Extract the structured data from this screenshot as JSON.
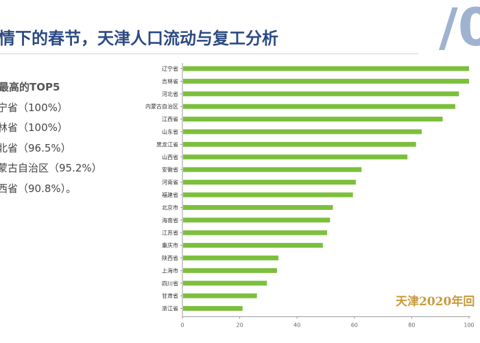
{
  "header": {
    "title": "情下的春节，天津人口流动与复工分析",
    "deco_mark": "/0"
  },
  "side_panel": {
    "heading": "最高的TOP5",
    "items": [
      "宁省（100%）",
      "林省（100%）",
      "北省（96.5%）",
      "蒙古自治区（95.2%）",
      "西省（90.8%）。"
    ]
  },
  "watermark": "天津2020年回",
  "colors": {
    "bar": "#7cbf3c",
    "title": "#2b4a82",
    "watermark": "#c89a3a",
    "deco": "#9fb3d1"
  },
  "chart_data": {
    "type": "bar",
    "orientation": "horizontal",
    "categories": [
      "辽宁省",
      "吉林省",
      "河北省",
      "内蒙古自治区",
      "江西省",
      "山东省",
      "黑龙江省",
      "山西省",
      "安徽省",
      "河南省",
      "福建省",
      "北京市",
      "海南省",
      "江苏省",
      "重庆市",
      "陕西省",
      "上海市",
      "四川省",
      "甘肃省",
      "浙江省"
    ],
    "values": [
      100,
      100,
      96.5,
      95.2,
      90.8,
      83.5,
      81.5,
      78.5,
      62.5,
      60.5,
      59.5,
      52.5,
      51.5,
      50.5,
      49.0,
      33.5,
      33.0,
      29.5,
      26.0,
      21.0
    ],
    "xlim": [
      0,
      100
    ],
    "xticks": [
      0,
      20,
      40,
      60,
      80,
      100
    ],
    "title": "",
    "xlabel": "",
    "ylabel": "",
    "grid": false,
    "legend": "none"
  }
}
